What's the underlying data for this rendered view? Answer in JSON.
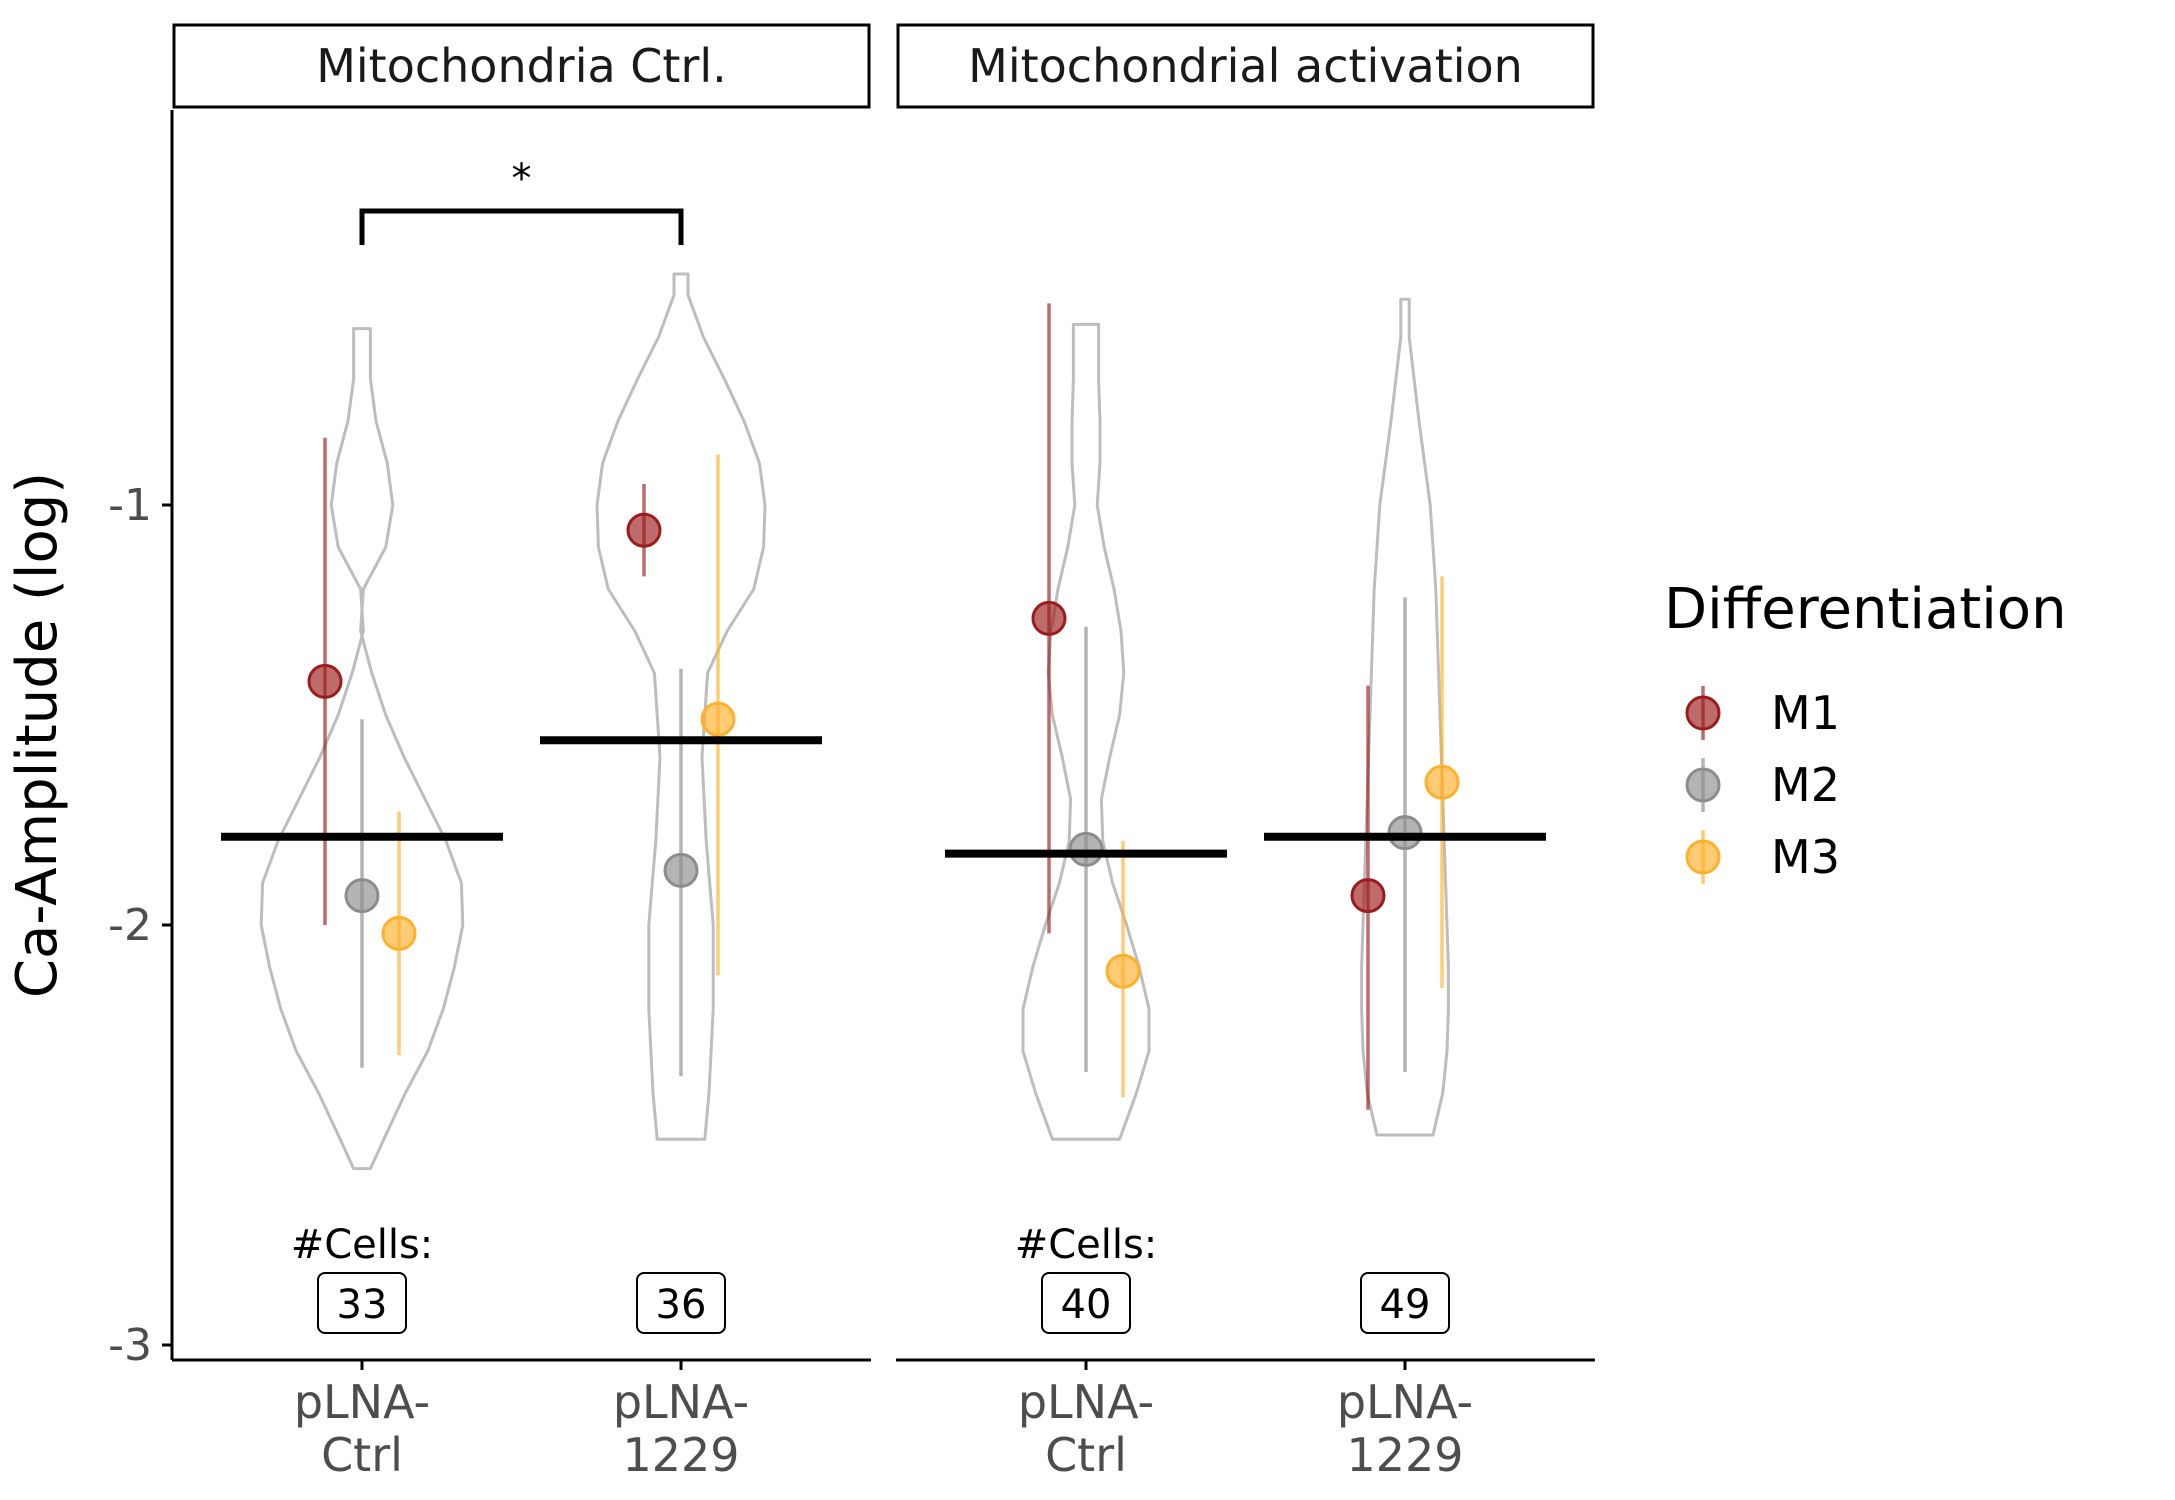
{
  "chart_data": {
    "type": "violin-dotplot",
    "ylabel": "Ca-Amplitude (log)",
    "ylim": [
      -3,
      0
    ],
    "y_ticks": [
      -1,
      -2,
      -3
    ],
    "y_tick_labels": [
      "-1",
      "-2",
      "-3"
    ],
    "legend": {
      "title": "Differentiation",
      "position": "right",
      "entries": [
        {
          "name": "M1",
          "color": "#9b1c1c"
        },
        {
          "name": "M2",
          "color": "#8c8c8c"
        },
        {
          "name": "M3",
          "color": "#ffb12b"
        }
      ]
    },
    "cells_label": "#Cells:",
    "panels": [
      {
        "title": "Mitochondria Ctrl.",
        "significance": {
          "label": "*",
          "from": 0,
          "to": 1,
          "y": -0.6
        },
        "groups": [
          {
            "label_lines": [
              "pLNA-",
              "Ctrl"
            ],
            "n_cells": "33",
            "mean": -1.79,
            "violin": {
              "ymin": -2.58,
              "ymax": -0.58,
              "profile": [
                [
                  -2.58,
                  0.06
                ],
                [
                  -2.5,
                  0.17
                ],
                [
                  -2.4,
                  0.31
                ],
                [
                  -2.3,
                  0.47
                ],
                [
                  -2.2,
                  0.58
                ],
                [
                  -2.1,
                  0.66
                ],
                [
                  -2.0,
                  0.72
                ],
                [
                  -1.9,
                  0.71
                ],
                [
                  -1.8,
                  0.6
                ],
                [
                  -1.7,
                  0.45
                ],
                [
                  -1.6,
                  0.3
                ],
                [
                  -1.5,
                  0.17
                ],
                [
                  -1.4,
                  0.07
                ],
                [
                  -1.3,
                  -0.01
                ],
                [
                  -1.2,
                  0.01
                ],
                [
                  -1.1,
                  0.17
                ],
                [
                  -1.0,
                  0.22
                ],
                [
                  -0.9,
                  0.18
                ],
                [
                  -0.8,
                  0.1
                ],
                [
                  -0.7,
                  0.06
                ],
                [
                  -0.58,
                  0.06
                ]
              ]
            },
            "points": [
              {
                "series": "M1",
                "y": -1.42,
                "low": -2.0,
                "high": -0.84
              },
              {
                "series": "M2",
                "y": -1.93,
                "low": -2.34,
                "high": -1.51
              },
              {
                "series": "M3",
                "y": -2.02,
                "low": -2.31,
                "high": -1.73
              }
            ]
          },
          {
            "label_lines": [
              "pLNA-",
              "1229"
            ],
            "n_cells": "36",
            "mean": -1.56,
            "violin": {
              "ymin": -2.51,
              "ymax": -0.45,
              "profile": [
                [
                  -2.51,
                  0.17
                ],
                [
                  -2.4,
                  0.2
                ],
                [
                  -2.2,
                  0.23
                ],
                [
                  -2.0,
                  0.23
                ],
                [
                  -1.8,
                  0.18
                ],
                [
                  -1.6,
                  0.15
                ],
                [
                  -1.4,
                  0.19
                ],
                [
                  -1.3,
                  0.33
                ],
                [
                  -1.2,
                  0.52
                ],
                [
                  -1.1,
                  0.59
                ],
                [
                  -1.0,
                  0.6
                ],
                [
                  -0.9,
                  0.56
                ],
                [
                  -0.8,
                  0.45
                ],
                [
                  -0.7,
                  0.31
                ],
                [
                  -0.6,
                  0.16
                ],
                [
                  -0.5,
                  0.05
                ],
                [
                  -0.45,
                  0.05
                ]
              ]
            },
            "points": [
              {
                "series": "M1",
                "y": -1.06,
                "low": -1.17,
                "high": -0.95
              },
              {
                "series": "M2",
                "y": -1.87,
                "low": -2.36,
                "high": -1.39
              },
              {
                "series": "M3",
                "y": -1.51,
                "low": -2.12,
                "high": -0.88
              }
            ]
          }
        ]
      },
      {
        "title": "Mitochondrial activation",
        "groups": [
          {
            "label_lines": [
              "pLNA-",
              "Ctrl"
            ],
            "n_cells": "40",
            "mean": -1.83,
            "violin": {
              "ymin": -2.51,
              "ymax": -0.57,
              "profile": [
                [
                  -2.51,
                  0.24
                ],
                [
                  -2.4,
                  0.36
                ],
                [
                  -2.3,
                  0.45
                ],
                [
                  -2.2,
                  0.45
                ],
                [
                  -2.1,
                  0.38
                ],
                [
                  -2.0,
                  0.29
                ],
                [
                  -1.9,
                  0.19
                ],
                [
                  -1.8,
                  0.12
                ],
                [
                  -1.7,
                  0.11
                ],
                [
                  -1.6,
                  0.17
                ],
                [
                  -1.5,
                  0.24
                ],
                [
                  -1.4,
                  0.27
                ],
                [
                  -1.3,
                  0.25
                ],
                [
                  -1.2,
                  0.2
                ],
                [
                  -1.1,
                  0.13
                ],
                [
                  -1.0,
                  0.08
                ],
                [
                  -0.9,
                  0.1
                ],
                [
                  -0.8,
                  0.1
                ],
                [
                  -0.7,
                  0.09
                ],
                [
                  -0.57,
                  0.09
                ]
              ]
            },
            "points": [
              {
                "series": "M1",
                "y": -1.27,
                "low": -2.02,
                "high": -0.52
              },
              {
                "series": "M2",
                "y": -1.82,
                "low": -2.35,
                "high": -1.29
              },
              {
                "series": "M3",
                "y": -2.11,
                "low": -2.41,
                "high": -1.8
              }
            ]
          },
          {
            "label_lines": [
              "pLNA-",
              "1229"
            ],
            "n_cells": "49",
            "mean": -1.79,
            "violin": {
              "ymin": -2.5,
              "ymax": -0.51,
              "profile": [
                [
                  -2.5,
                  0.2
                ],
                [
                  -2.4,
                  0.27
                ],
                [
                  -2.3,
                  0.3
                ],
                [
                  -2.2,
                  0.31
                ],
                [
                  -2.1,
                  0.31
                ],
                [
                  -2.0,
                  0.3
                ],
                [
                  -1.8,
                  0.28
                ],
                [
                  -1.6,
                  0.26
                ],
                [
                  -1.4,
                  0.24
                ],
                [
                  -1.2,
                  0.22
                ],
                [
                  -1.0,
                  0.18
                ],
                [
                  -0.8,
                  0.1
                ],
                [
                  -0.6,
                  0.03
                ],
                [
                  -0.51,
                  0.03
                ]
              ]
            },
            "points": [
              {
                "series": "M1",
                "y": -1.93,
                "low": -2.44,
                "high": -1.43
              },
              {
                "series": "M2",
                "y": -1.78,
                "low": -2.35,
                "high": -1.22
              },
              {
                "series": "M3",
                "y": -1.66,
                "low": -2.15,
                "high": -1.17
              }
            ]
          }
        ]
      }
    ]
  }
}
